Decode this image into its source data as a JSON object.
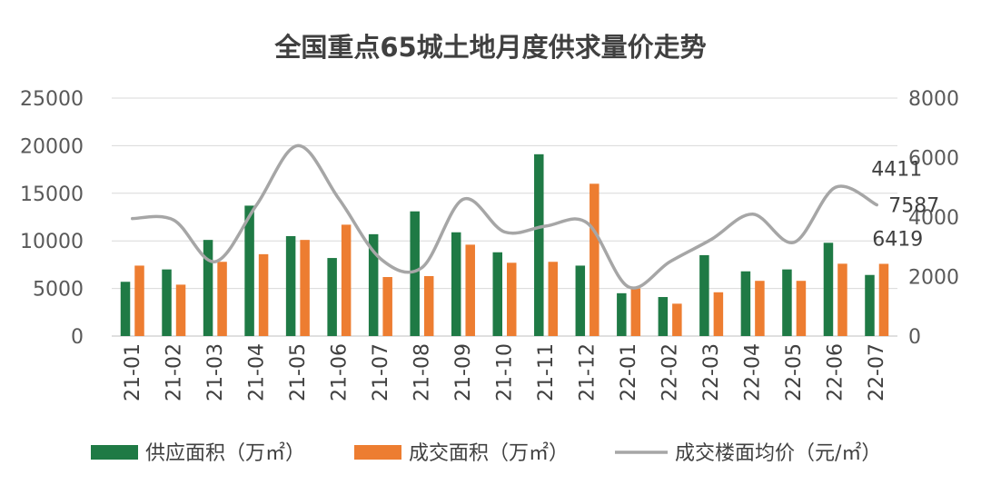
{
  "chart_data": {
    "type": "bar+line",
    "title": "全国重点65城土地月度供求量价走势",
    "categories": [
      "21-01",
      "21-02",
      "21-03",
      "21-04",
      "21-05",
      "21-06",
      "21-07",
      "21-08",
      "21-09",
      "21-10",
      "21-11",
      "21-12",
      "22-01",
      "22-02",
      "22-03",
      "22-04",
      "22-05",
      "22-06",
      "22-07"
    ],
    "series": [
      {
        "name": "供应面积（万㎡）",
        "type": "bar",
        "axis": "left",
        "color": "#1f7a45",
        "values": [
          5700,
          7000,
          10100,
          13700,
          10500,
          8200,
          10700,
          13100,
          10900,
          8800,
          19100,
          7400,
          4500,
          4100,
          8500,
          6800,
          7000,
          9800,
          6419
        ]
      },
      {
        "name": "成交面积（万㎡）",
        "type": "bar",
        "axis": "left",
        "color": "#ed7d31",
        "values": [
          7400,
          5400,
          7800,
          8600,
          10100,
          11700,
          6200,
          6300,
          9600,
          7700,
          7800,
          16000,
          5000,
          3400,
          4600,
          5800,
          5800,
          7600,
          7587
        ]
      },
      {
        "name": "成交楼面均价（元/㎡）",
        "type": "line",
        "axis": "right",
        "color": "#a6a6a6",
        "values": [
          3950,
          3900,
          2500,
          4400,
          6400,
          4600,
          2600,
          2300,
          4600,
          3500,
          3700,
          3800,
          1650,
          2500,
          3250,
          4100,
          3150,
          5000,
          4411
        ]
      }
    ],
    "data_labels": [
      {
        "series": "成交楼面均价（元/㎡）",
        "category": "22-07",
        "text": "4411"
      },
      {
        "series": "成交面积（万㎡）",
        "category": "22-07",
        "text": "7587"
      },
      {
        "series": "供应面积（万㎡）",
        "category": "22-07",
        "text": "6419"
      }
    ],
    "y_left": {
      "min": 0,
      "max": 25000,
      "ticks": [
        "0",
        "5000",
        "10000",
        "15000",
        "20000",
        "25000"
      ]
    },
    "y_right": {
      "min": 0,
      "max": 8000,
      "ticks": [
        "0",
        "2000",
        "4000",
        "6000",
        "8000"
      ]
    },
    "grid": true,
    "legend": "bottom"
  }
}
